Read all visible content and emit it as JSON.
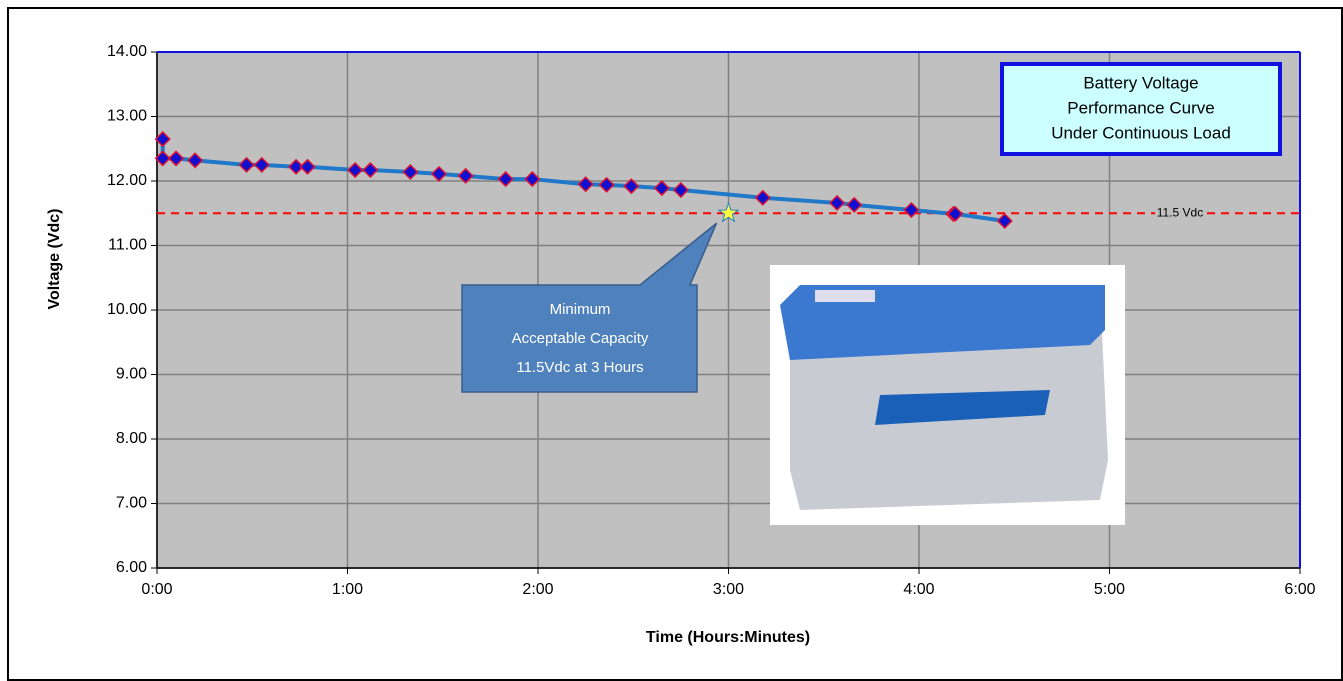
{
  "chart_data": {
    "type": "line",
    "x_label": "Time (Hours:Minutes)",
    "y_label": "Voltage (Vdc)",
    "legend_title": [
      "Battery Voltage",
      "Performance Curve",
      "Under Continuous Load"
    ],
    "x": [
      0.03,
      0.03,
      0.1,
      0.2,
      0.47,
      0.55,
      0.73,
      0.79,
      1.04,
      1.12,
      1.33,
      1.48,
      1.62,
      1.83,
      1.97,
      2.25,
      2.36,
      2.49,
      2.65,
      2.75,
      3.18,
      3.57,
      3.66,
      3.96,
      4.18,
      4.19,
      4.45
    ],
    "series": [
      {
        "name": "Battery Voltage",
        "color": "#1f78c8",
        "marker_color": "#1010d0",
        "marker_edge": "#e01030",
        "values": [
          12.65,
          12.35,
          12.35,
          12.32,
          12.25,
          12.25,
          12.22,
          12.22,
          12.17,
          12.17,
          12.14,
          12.11,
          12.08,
          12.03,
          12.03,
          11.95,
          11.94,
          11.92,
          11.89,
          11.86,
          11.74,
          11.66,
          11.63,
          11.55,
          11.49,
          11.49,
          11.38
        ]
      }
    ],
    "reference_line": {
      "value": 11.5,
      "label": "11.5 Vdc",
      "color": "#ff0000"
    },
    "highlight_point": {
      "x": 3,
      "y": 11.5,
      "color": "#ffff40"
    },
    "annotation": [
      "Minimum",
      "Acceptable Capacity",
      "11.5Vdc at 3 Hours"
    ],
    "xlim": [
      0,
      6
    ],
    "xticks": [
      {
        "value": 0,
        "label": "0:00"
      },
      {
        "value": 1,
        "label": "1:00"
      },
      {
        "value": 2,
        "label": "2:00"
      },
      {
        "value": 3,
        "label": "3:00"
      },
      {
        "value": 4,
        "label": "4:00"
      },
      {
        "value": 5,
        "label": "5:00"
      },
      {
        "value": 6,
        "label": "6:00"
      }
    ],
    "ylim": [
      6,
      14
    ],
    "yticks": [
      {
        "value": 6,
        "label": "6.00"
      },
      {
        "value": 7,
        "label": "7.00"
      },
      {
        "value": 8,
        "label": "8.00"
      },
      {
        "value": 9,
        "label": "9.00"
      },
      {
        "value": 10,
        "label": "10.00"
      },
      {
        "value": 11,
        "label": "11.00"
      },
      {
        "value": 12,
        "label": "12.00"
      },
      {
        "value": 13,
        "label": "13.00"
      },
      {
        "value": 14,
        "label": "14.00"
      }
    ],
    "grid": true
  }
}
